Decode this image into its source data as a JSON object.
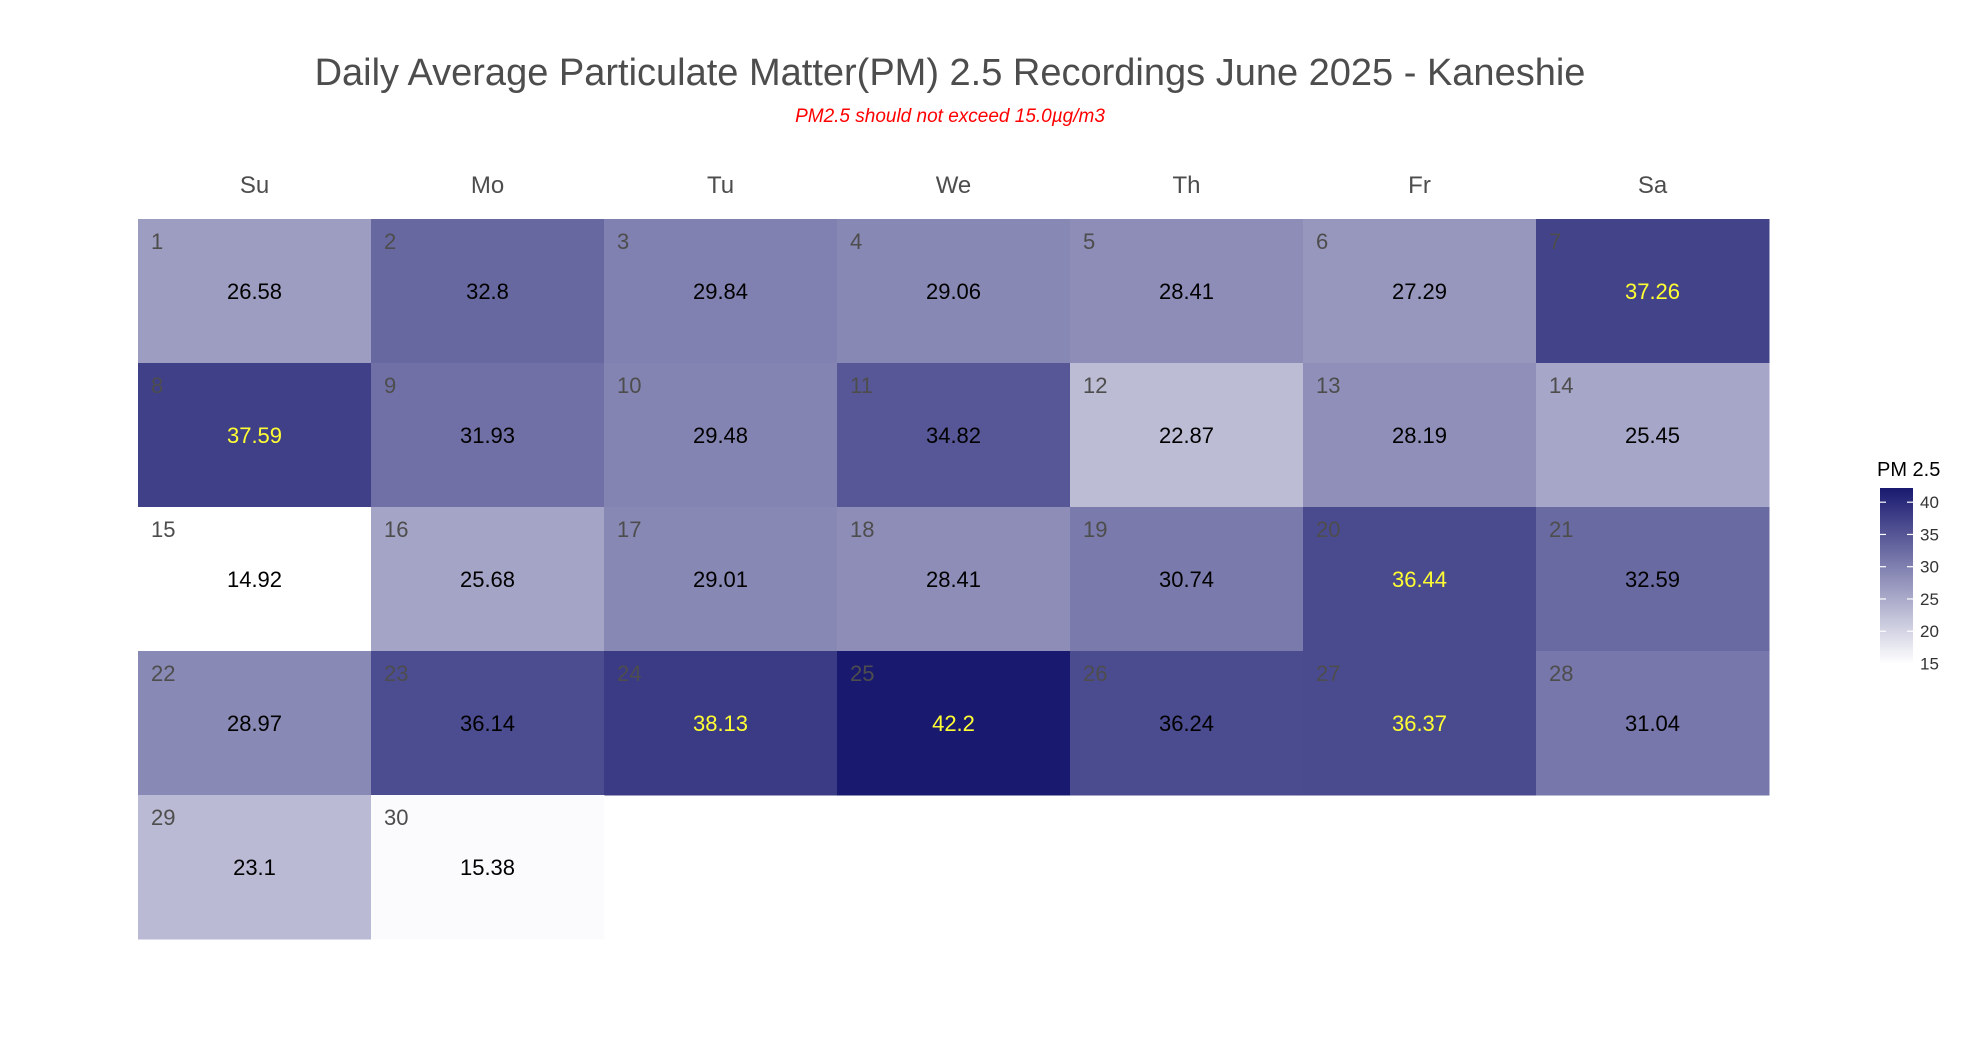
{
  "chart_data": {
    "type": "heatmap",
    "title": "Daily Average Particulate Matter(PM) 2.5 Recordings June 2025 -  Kaneshie",
    "subtitle": "PM2.5 should not exceed 15.0µg/m3",
    "weekdays": [
      "Su",
      "Mo",
      "Tu",
      "We",
      "Th",
      "Fr",
      "Sa"
    ],
    "first_weekday_index": 0,
    "days": [
      1,
      2,
      3,
      4,
      5,
      6,
      7,
      8,
      9,
      10,
      11,
      12,
      13,
      14,
      15,
      16,
      17,
      18,
      19,
      20,
      21,
      22,
      23,
      24,
      25,
      26,
      27,
      28,
      29,
      30
    ],
    "values": [
      26.58,
      32.8,
      29.84,
      29.06,
      28.41,
      27.29,
      37.26,
      37.59,
      31.93,
      29.48,
      34.82,
      22.87,
      28.19,
      25.45,
      14.92,
      25.68,
      29.01,
      28.41,
      30.74,
      36.44,
      32.59,
      28.97,
      36.14,
      38.13,
      42.2,
      36.24,
      36.37,
      31.04,
      23.1,
      15.38
    ],
    "value_labels": [
      "26.58",
      "32.8",
      "29.84",
      "29.06",
      "28.41",
      "27.29",
      "37.26",
      "37.59",
      "31.93",
      "29.48",
      "34.82",
      "22.87",
      "28.19",
      "25.45",
      "14.92",
      "25.68",
      "29.01",
      "28.41",
      "30.74",
      "36.44",
      "32.59",
      "28.97",
      "36.14",
      "38.13",
      "42.2",
      "36.24",
      "36.37",
      "31.04",
      "23.1",
      "15.38"
    ],
    "highlighted_days": [
      7,
      8,
      20,
      24,
      25,
      27
    ],
    "highlight_color": "#ffff33",
    "legend": {
      "title": "PM 2.5",
      "ticks": [
        15,
        20,
        25,
        30,
        35,
        40
      ],
      "tick_labels": [
        "15",
        "20",
        "25",
        "30",
        "35",
        "40"
      ],
      "range": [
        14.92,
        42.2
      ],
      "low_color": "#ffffff",
      "high_color": "#191970",
      "placement": "right"
    },
    "colors": {
      "title": "#4d4d4d",
      "subtitle": "#ff0000",
      "value_text": "#000000",
      "day_number": "#4d4d4d"
    }
  }
}
